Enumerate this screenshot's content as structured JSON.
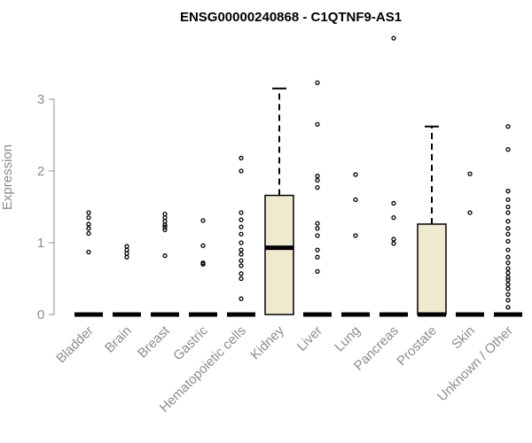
{
  "chart_data": {
    "type": "box",
    "title": "ENSG00000240868 - C1QTNF9-AS1",
    "xlabel": "",
    "ylabel": "Expression",
    "ylim": [
      0,
      3.9
    ],
    "yticks": [
      0,
      1,
      2,
      3
    ],
    "box_fill": "#efe9cf",
    "categories": [
      "Bladder",
      "Brain",
      "Breast",
      "Gastric",
      "Hematopoietic cells",
      "Kidney",
      "Liver",
      "Lung",
      "Pancreas",
      "Prostate",
      "Skin",
      "Unknown / Other"
    ],
    "boxes": [
      {
        "q1": 0,
        "median": 0,
        "q3": 0,
        "whisker_low": 0,
        "whisker_high": 0,
        "outliers": [
          0.87,
          1.13,
          1.2,
          1.26,
          1.35,
          1.42
        ]
      },
      {
        "q1": 0,
        "median": 0,
        "q3": 0,
        "whisker_low": 0,
        "whisker_high": 0,
        "outliers": [
          0.8,
          0.85,
          0.9,
          0.95
        ]
      },
      {
        "q1": 0,
        "median": 0,
        "q3": 0,
        "whisker_low": 0,
        "whisker_high": 0,
        "outliers": [
          0.82,
          1.18,
          1.22,
          1.25,
          1.3,
          1.35,
          1.4
        ]
      },
      {
        "q1": 0,
        "median": 0,
        "q3": 0,
        "whisker_low": 0,
        "whisker_high": 0,
        "outliers": [
          0.7,
          0.72,
          0.96,
          1.31
        ]
      },
      {
        "q1": 0,
        "median": 0,
        "q3": 0,
        "whisker_low": 0,
        "whisker_high": 0,
        "outliers": [
          0.22,
          0.5,
          0.57,
          0.68,
          0.75,
          0.84,
          0.9,
          1.0,
          1.12,
          1.22,
          1.32,
          1.42,
          2.0,
          2.18
        ]
      },
      {
        "q1": 0,
        "median": 0.93,
        "q3": 1.66,
        "whisker_low": 0,
        "whisker_high": 3.15,
        "outliers": []
      },
      {
        "q1": 0,
        "median": 0,
        "q3": 0,
        "whisker_low": 0,
        "whisker_high": 0,
        "outliers": [
          0.6,
          0.8,
          0.9,
          1.1,
          1.2,
          1.27,
          1.77,
          1.87,
          1.93,
          2.65,
          3.23
        ]
      },
      {
        "q1": 0,
        "median": 0,
        "q3": 0,
        "whisker_low": 0,
        "whisker_high": 0,
        "outliers": [
          1.1,
          1.6,
          1.95
        ]
      },
      {
        "q1": 0,
        "median": 0,
        "q3": 0,
        "whisker_low": 0,
        "whisker_high": 0,
        "outliers": [
          0.99,
          1.05,
          1.35,
          1.55,
          3.85
        ]
      },
      {
        "q1": 0,
        "median": 0,
        "q3": 1.26,
        "whisker_low": 0,
        "whisker_high": 2.62,
        "outliers": []
      },
      {
        "q1": 0,
        "median": 0,
        "q3": 0,
        "whisker_low": 0,
        "whisker_high": 0,
        "outliers": [
          1.42,
          1.96
        ]
      },
      {
        "q1": 0,
        "median": 0,
        "q3": 0,
        "whisker_low": 0,
        "whisker_high": 0,
        "outliers": [
          0.1,
          0.2,
          0.28,
          0.36,
          0.42,
          0.48,
          0.52,
          0.58,
          0.64,
          0.72,
          0.8,
          0.9,
          1.02,
          1.12,
          1.2,
          1.3,
          1.42,
          1.5,
          1.6,
          1.72,
          2.3,
          2.62
        ]
      }
    ]
  }
}
